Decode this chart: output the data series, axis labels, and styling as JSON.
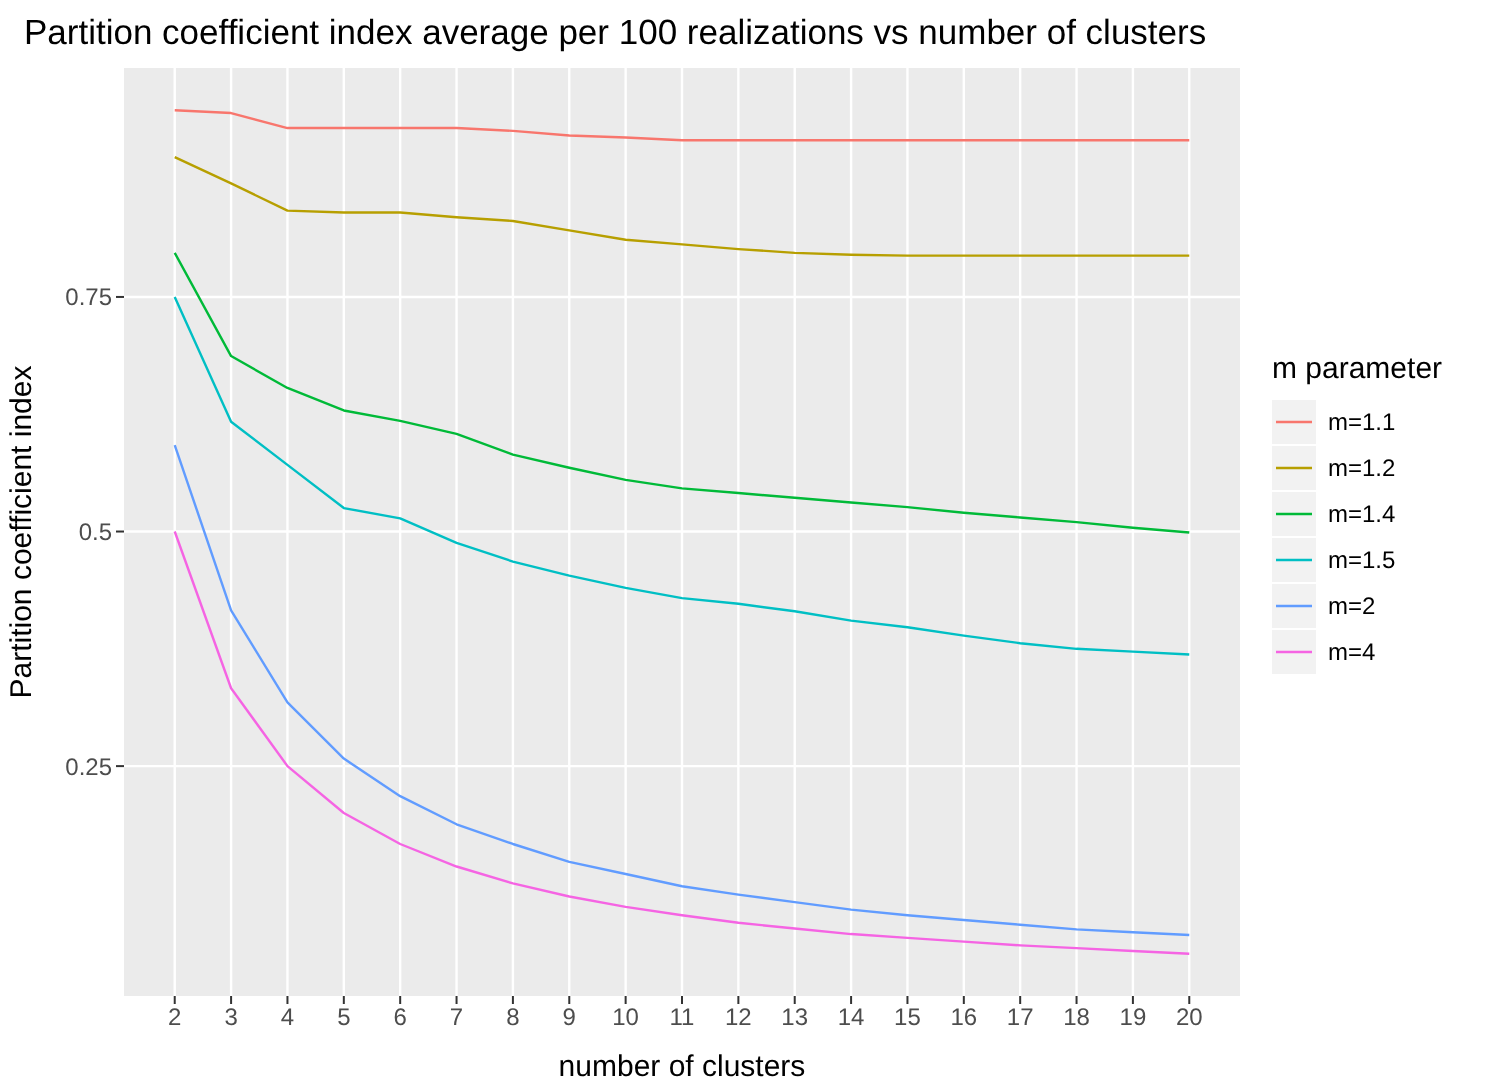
{
  "chart_data": {
    "type": "line",
    "title": "Partition coefficient index average per 100 realizations vs number of clusters",
    "xlabel": "number of clusters",
    "ylabel": "Partition coefficient index",
    "legend_title": "m parameter",
    "legend": "right",
    "grid": true,
    "marker": "none",
    "line_style": "solid",
    "x": [
      2,
      3,
      4,
      5,
      6,
      7,
      8,
      9,
      10,
      11,
      12,
      13,
      14,
      15,
      16,
      17,
      18,
      19,
      20
    ],
    "xlim": [
      1.1,
      20.9
    ],
    "xticks": [
      2,
      3,
      4,
      5,
      6,
      7,
      8,
      9,
      10,
      11,
      12,
      13,
      14,
      15,
      16,
      17,
      18,
      19,
      20
    ],
    "ylim": [
      0.005,
      0.994
    ],
    "yticks": [
      0.25,
      0.5,
      0.75
    ],
    "series": [
      {
        "name": "m=1.1",
        "color": "#f8766d",
        "values": [
          0.949,
          0.946,
          0.93,
          0.93,
          0.93,
          0.93,
          0.927,
          0.922,
          0.92,
          0.917,
          0.917,
          0.917,
          0.917,
          0.917,
          0.917,
          0.917,
          0.917,
          0.917,
          0.917
        ]
      },
      {
        "name": "m=1.2",
        "color": "#b79f00",
        "values": [
          0.899,
          0.871,
          0.842,
          0.84,
          0.84,
          0.835,
          0.831,
          0.821,
          0.811,
          0.806,
          0.801,
          0.797,
          0.795,
          0.794,
          0.794,
          0.794,
          0.794,
          0.794,
          0.794
        ]
      },
      {
        "name": "m=1.4",
        "color": "#00ba38",
        "values": [
          0.797,
          0.687,
          0.653,
          0.629,
          0.618,
          0.604,
          0.582,
          0.568,
          0.555,
          0.546,
          0.541,
          0.536,
          0.531,
          0.526,
          0.52,
          0.515,
          0.51,
          0.504,
          0.499
        ]
      },
      {
        "name": "m=1.5",
        "color": "#00bfc4",
        "values": [
          0.75,
          0.617,
          0.571,
          0.525,
          0.514,
          0.488,
          0.468,
          0.453,
          0.44,
          0.429,
          0.423,
          0.415,
          0.405,
          0.398,
          0.389,
          0.381,
          0.375,
          0.372,
          0.369
        ]
      },
      {
        "name": "m=2",
        "color": "#619cff",
        "values": [
          0.592,
          0.416,
          0.318,
          0.258,
          0.218,
          0.188,
          0.167,
          0.148,
          0.135,
          0.122,
          0.113,
          0.105,
          0.097,
          0.091,
          0.086,
          0.081,
          0.076,
          0.073,
          0.07
        ]
      },
      {
        "name": "m=4",
        "color": "#f564e3",
        "values": [
          0.5,
          0.333,
          0.25,
          0.2,
          0.167,
          0.143,
          0.125,
          0.111,
          0.1,
          0.091,
          0.083,
          0.077,
          0.071,
          0.067,
          0.063,
          0.059,
          0.056,
          0.053,
          0.05
        ]
      }
    ]
  }
}
